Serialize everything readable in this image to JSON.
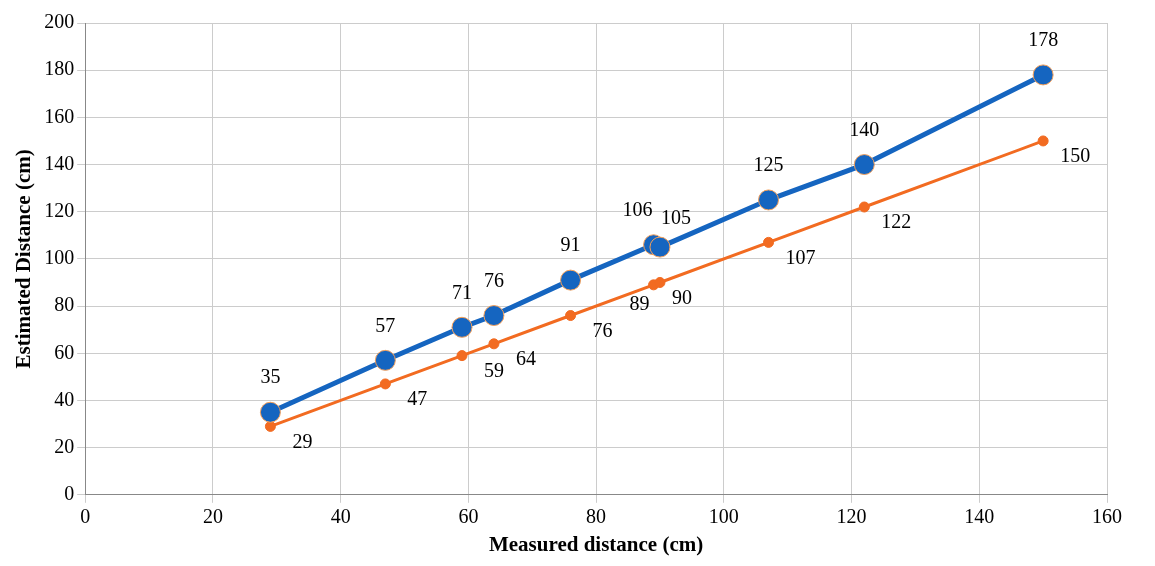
{
  "chart_data": {
    "type": "line",
    "xlabel": "Measured distance (cm)",
    "ylabel": "Estimated Distance (cm)",
    "x": [
      29,
      47,
      59,
      64,
      76,
      89,
      90,
      107,
      122,
      150
    ],
    "series": [
      {
        "color": "#1565c0",
        "values": [
          35,
          57,
          71,
          76,
          91,
          106,
          105,
          125,
          140,
          178
        ]
      },
      {
        "color": "#f26b21",
        "values": [
          29,
          47,
          59,
          64,
          76,
          89,
          90,
          107,
          122,
          150
        ]
      }
    ],
    "xlim": [
      0,
      160
    ],
    "xticks": [
      0,
      20,
      40,
      60,
      80,
      100,
      120,
      140,
      160
    ],
    "ylim": [
      0,
      200
    ],
    "yticks": [
      0,
      20,
      40,
      60,
      80,
      100,
      120,
      140,
      160,
      180,
      200
    ],
    "grid": true,
    "marker": "circle",
    "data_labels": true
  }
}
